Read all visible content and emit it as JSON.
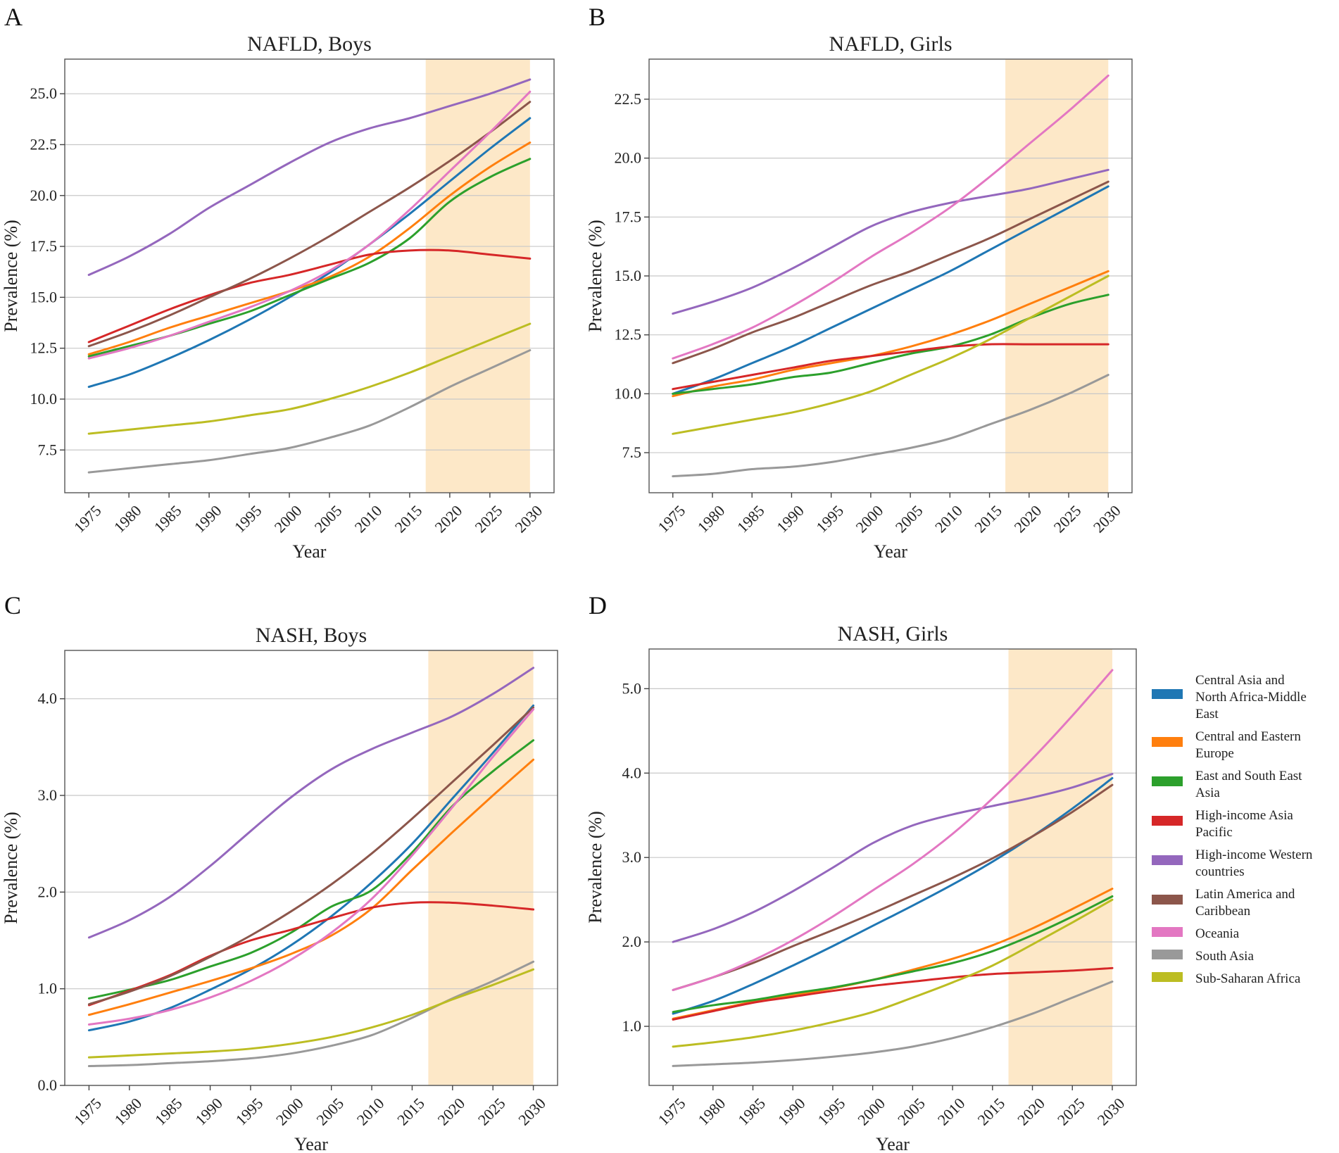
{
  "figure": {
    "legend": [
      {
        "id": "CANAME",
        "label": "Central Asia and North Africa-Middle East",
        "lines": [
          "Central Asia and",
          "North Africa-Middle",
          "East"
        ],
        "color": "#1f77b4"
      },
      {
        "id": "CEE",
        "label": "Central and Eastern Europe",
        "lines": [
          "Central and Eastern",
          "Europe"
        ],
        "color": "#ff7f0e"
      },
      {
        "id": "ESEA",
        "label": "East and South East Asia",
        "lines": [
          "East and South East",
          "Asia"
        ],
        "color": "#2ca02c"
      },
      {
        "id": "HIAP",
        "label": "High-income Asia Pacific",
        "lines": [
          "High-income Asia",
          "Pacific"
        ],
        "color": "#d62728"
      },
      {
        "id": "HIW",
        "label": "High-income Western countries",
        "lines": [
          "High-income Western",
          "countries"
        ],
        "color": "#9467bd"
      },
      {
        "id": "LAC",
        "label": "Latin America and Caribbean",
        "lines": [
          "Latin America and",
          "Caribbean"
        ],
        "color": "#8c564b"
      },
      {
        "id": "OC",
        "label": "Oceania",
        "lines": [
          "Oceania"
        ],
        "color": "#e377c2"
      },
      {
        "id": "SA",
        "label": "South Asia",
        "lines": [
          "South Asia"
        ],
        "color": "#999999"
      },
      {
        "id": "SSA",
        "label": "Sub-Saharan Africa",
        "lines": [
          "Sub-Saharan Africa"
        ],
        "color": "#bcbd22"
      }
    ],
    "projection_color": "#fde8c8"
  },
  "chart_data": [
    {
      "panel": "A",
      "type": "line",
      "title": "NAFLD, Boys",
      "xlabel": "Year",
      "ylabel": "Prevalence (%)",
      "xlim": [
        1972,
        2033
      ],
      "ylim": [
        5.4,
        26.7
      ],
      "xticks": [
        1975,
        1980,
        1985,
        1990,
        1995,
        2000,
        2005,
        2010,
        2015,
        2020,
        2025,
        2030
      ],
      "yticks": [
        7.5,
        10.0,
        12.5,
        15.0,
        17.5,
        20.0,
        22.5,
        25.0
      ],
      "ytick_labels": [
        "7.5",
        "10.0",
        "12.5",
        "15.0",
        "17.5",
        "20.0",
        "22.5",
        "25.0"
      ],
      "projection": [
        2017,
        2030
      ],
      "x": [
        1975,
        1980,
        1985,
        1990,
        1995,
        2000,
        2005,
        2010,
        2015,
        2020,
        2025,
        2030
      ],
      "series": [
        {
          "name": "Central Asia and North Africa-Middle East",
          "values": [
            10.6,
            11.2,
            12.0,
            12.9,
            13.9,
            15.0,
            16.2,
            17.6,
            19.1,
            20.7,
            22.3,
            23.8
          ]
        },
        {
          "name": "Central and Eastern Europe",
          "values": [
            12.2,
            12.8,
            13.5,
            14.1,
            14.7,
            15.3,
            16.0,
            17.0,
            18.4,
            20.0,
            21.4,
            22.6
          ]
        },
        {
          "name": "East and South East Asia",
          "values": [
            12.1,
            12.6,
            13.1,
            13.7,
            14.3,
            15.1,
            15.9,
            16.7,
            17.9,
            19.7,
            20.9,
            21.8
          ]
        },
        {
          "name": "High-income Asia Pacific",
          "values": [
            12.8,
            13.6,
            14.4,
            15.1,
            15.7,
            16.1,
            16.6,
            17.1,
            17.3,
            17.3,
            17.1,
            16.9
          ]
        },
        {
          "name": "High-income Western countries",
          "values": [
            16.1,
            17.0,
            18.1,
            19.4,
            20.5,
            21.6,
            22.6,
            23.3,
            23.8,
            24.4,
            25.0,
            25.7
          ]
        },
        {
          "name": "Latin America and Caribbean",
          "values": [
            12.6,
            13.3,
            14.1,
            15.0,
            15.9,
            16.9,
            18.0,
            19.2,
            20.4,
            21.7,
            23.1,
            24.6
          ]
        },
        {
          "name": "Oceania",
          "values": [
            12.0,
            12.5,
            13.1,
            13.8,
            14.5,
            15.3,
            16.3,
            17.6,
            19.3,
            21.2,
            23.1,
            25.1
          ]
        },
        {
          "name": "South Asia",
          "values": [
            6.4,
            6.6,
            6.8,
            7.0,
            7.3,
            7.6,
            8.1,
            8.7,
            9.6,
            10.6,
            11.5,
            12.4
          ]
        },
        {
          "name": "Sub-Saharan Africa",
          "values": [
            8.3,
            8.5,
            8.7,
            8.9,
            9.2,
            9.5,
            10.0,
            10.6,
            11.3,
            12.1,
            12.9,
            13.7
          ]
        }
      ]
    },
    {
      "panel": "B",
      "type": "line",
      "title": "NAFLD, Girls",
      "xlabel": "Year",
      "ylabel": "Prevalence (%)",
      "xlim": [
        1972,
        2033
      ],
      "ylim": [
        5.8,
        24.2
      ],
      "xticks": [
        1975,
        1980,
        1985,
        1990,
        1995,
        2000,
        2005,
        2010,
        2015,
        2020,
        2025,
        2030
      ],
      "yticks": [
        7.5,
        10.0,
        12.5,
        15.0,
        17.5,
        20.0,
        22.5
      ],
      "ytick_labels": [
        "7.5",
        "10.0",
        "12.5",
        "15.0",
        "17.5",
        "20.0",
        "22.5"
      ],
      "projection": [
        2017,
        2030
      ],
      "x": [
        1975,
        1980,
        1985,
        1990,
        1995,
        2000,
        2005,
        2010,
        2015,
        2020,
        2025,
        2030
      ],
      "series": [
        {
          "name": "Central Asia and North Africa-Middle East",
          "values": [
            10.0,
            10.6,
            11.3,
            12.0,
            12.8,
            13.6,
            14.4,
            15.2,
            16.1,
            17.0,
            17.9,
            18.8
          ]
        },
        {
          "name": "Central and Eastern Europe",
          "values": [
            9.9,
            10.3,
            10.6,
            11.0,
            11.3,
            11.6,
            12.0,
            12.5,
            13.1,
            13.8,
            14.5,
            15.2
          ]
        },
        {
          "name": "East and South East Asia",
          "values": [
            10.0,
            10.2,
            10.4,
            10.7,
            10.9,
            11.3,
            11.7,
            12.0,
            12.5,
            13.2,
            13.8,
            14.2
          ]
        },
        {
          "name": "High-income Asia Pacific",
          "values": [
            10.2,
            10.5,
            10.8,
            11.1,
            11.4,
            11.6,
            11.8,
            12.0,
            12.1,
            12.1,
            12.1,
            12.1
          ]
        },
        {
          "name": "High-income Western countries",
          "values": [
            13.4,
            13.9,
            14.5,
            15.3,
            16.2,
            17.1,
            17.7,
            18.1,
            18.4,
            18.7,
            19.1,
            19.5
          ]
        },
        {
          "name": "Latin America and Caribbean",
          "values": [
            11.3,
            11.9,
            12.6,
            13.2,
            13.9,
            14.6,
            15.2,
            15.9,
            16.6,
            17.4,
            18.2,
            19.0
          ]
        },
        {
          "name": "Oceania",
          "values": [
            11.5,
            12.1,
            12.8,
            13.7,
            14.7,
            15.8,
            16.8,
            17.9,
            19.2,
            20.6,
            22.0,
            23.5
          ]
        },
        {
          "name": "South Asia",
          "values": [
            6.5,
            6.6,
            6.8,
            6.9,
            7.1,
            7.4,
            7.7,
            8.1,
            8.7,
            9.3,
            10.0,
            10.8
          ]
        },
        {
          "name": "Sub-Saharan Africa",
          "values": [
            8.3,
            8.6,
            8.9,
            9.2,
            9.6,
            10.1,
            10.8,
            11.5,
            12.3,
            13.2,
            14.1,
            15.0
          ]
        }
      ]
    },
    {
      "panel": "C",
      "type": "line",
      "title": "NASH, Boys",
      "xlabel": "Year",
      "ylabel": "Prevalence (%)",
      "xlim": [
        1972,
        2033
      ],
      "ylim": [
        0.0,
        4.5
      ],
      "xticks": [
        1975,
        1980,
        1985,
        1990,
        1995,
        2000,
        2005,
        2010,
        2015,
        2020,
        2025,
        2030
      ],
      "yticks": [
        0.0,
        1.0,
        2.0,
        3.0,
        4.0
      ],
      "ytick_labels": [
        "0.0",
        "1.0",
        "2.0",
        "3.0",
        "4.0"
      ],
      "projection": [
        2017,
        2030
      ],
      "x": [
        1975,
        1980,
        1985,
        1990,
        1995,
        2000,
        2005,
        2010,
        2015,
        2020,
        2025,
        2030
      ],
      "series": [
        {
          "name": "Central Asia and North Africa-Middle East",
          "values": [
            0.57,
            0.66,
            0.8,
            0.99,
            1.2,
            1.45,
            1.75,
            2.1,
            2.5,
            2.97,
            3.44,
            3.93
          ]
        },
        {
          "name": "Central and Eastern Europe",
          "values": [
            0.73,
            0.84,
            0.96,
            1.08,
            1.21,
            1.36,
            1.55,
            1.83,
            2.23,
            2.62,
            3.0,
            3.37
          ]
        },
        {
          "name": "East and South East Asia",
          "values": [
            0.9,
            0.99,
            1.09,
            1.23,
            1.37,
            1.58,
            1.85,
            2.02,
            2.41,
            2.89,
            3.25,
            3.57
          ]
        },
        {
          "name": "High-income Asia Pacific",
          "values": [
            0.83,
            0.98,
            1.14,
            1.34,
            1.5,
            1.61,
            1.73,
            1.84,
            1.89,
            1.89,
            1.86,
            1.82
          ]
        },
        {
          "name": "High-income Western countries",
          "values": [
            1.53,
            1.71,
            1.95,
            2.27,
            2.63,
            2.98,
            3.27,
            3.48,
            3.65,
            3.82,
            4.05,
            4.32
          ]
        },
        {
          "name": "Latin America and Caribbean",
          "values": [
            0.84,
            0.97,
            1.13,
            1.33,
            1.55,
            1.8,
            2.08,
            2.4,
            2.76,
            3.14,
            3.52,
            3.91
          ]
        },
        {
          "name": "Oceania",
          "values": [
            0.63,
            0.69,
            0.78,
            0.91,
            1.08,
            1.3,
            1.58,
            1.93,
            2.38,
            2.88,
            3.4,
            3.89
          ]
        },
        {
          "name": "South Asia",
          "values": [
            0.2,
            0.21,
            0.23,
            0.25,
            0.28,
            0.33,
            0.41,
            0.52,
            0.7,
            0.9,
            1.08,
            1.28
          ]
        },
        {
          "name": "Sub-Saharan Africa",
          "values": [
            0.29,
            0.31,
            0.33,
            0.35,
            0.38,
            0.43,
            0.5,
            0.6,
            0.73,
            0.89,
            1.04,
            1.2
          ]
        }
      ]
    },
    {
      "panel": "D",
      "type": "line",
      "title": "NASH, Girls",
      "xlabel": "Year",
      "ylabel": "Prevalence (%)",
      "xlim": [
        1972,
        2033
      ],
      "ylim": [
        0.3,
        5.47
      ],
      "xticks": [
        1975,
        1980,
        1985,
        1990,
        1995,
        2000,
        2005,
        2010,
        2015,
        2020,
        2025,
        2030
      ],
      "yticks": [
        1.0,
        2.0,
        3.0,
        4.0,
        5.0
      ],
      "ytick_labels": [
        "1.0",
        "2.0",
        "3.0",
        "4.0",
        "5.0"
      ],
      "projection": [
        2017,
        2030
      ],
      "x": [
        1975,
        1980,
        1985,
        1990,
        1995,
        2000,
        2005,
        2010,
        2015,
        2020,
        2025,
        2030
      ],
      "series": [
        {
          "name": "Central Asia and North Africa-Middle East",
          "values": [
            1.15,
            1.3,
            1.5,
            1.72,
            1.95,
            2.19,
            2.43,
            2.68,
            2.95,
            3.25,
            3.58,
            3.94
          ]
        },
        {
          "name": "Central and Eastern Europe",
          "values": [
            1.09,
            1.19,
            1.29,
            1.37,
            1.45,
            1.55,
            1.67,
            1.8,
            1.96,
            2.16,
            2.39,
            2.63
          ]
        },
        {
          "name": "East and South East Asia",
          "values": [
            1.17,
            1.25,
            1.31,
            1.39,
            1.46,
            1.55,
            1.65,
            1.75,
            1.89,
            2.08,
            2.3,
            2.54
          ]
        },
        {
          "name": "High-income Asia Pacific",
          "values": [
            1.08,
            1.18,
            1.28,
            1.35,
            1.42,
            1.48,
            1.53,
            1.58,
            1.62,
            1.64,
            1.66,
            1.69
          ]
        },
        {
          "name": "High-income Western countries",
          "values": [
            2.0,
            2.15,
            2.35,
            2.6,
            2.88,
            3.17,
            3.38,
            3.51,
            3.61,
            3.71,
            3.83,
            3.99
          ]
        },
        {
          "name": "Latin America and Caribbean",
          "values": [
            1.43,
            1.58,
            1.75,
            1.95,
            2.14,
            2.34,
            2.55,
            2.76,
            2.99,
            3.25,
            3.54,
            3.86
          ]
        },
        {
          "name": "Oceania",
          "values": [
            1.43,
            1.58,
            1.78,
            2.02,
            2.3,
            2.61,
            2.92,
            3.28,
            3.7,
            4.17,
            4.68,
            5.22
          ]
        },
        {
          "name": "South Asia",
          "values": [
            0.53,
            0.55,
            0.57,
            0.6,
            0.64,
            0.69,
            0.76,
            0.86,
            0.99,
            1.15,
            1.34,
            1.53
          ]
        },
        {
          "name": "Sub-Saharan Africa",
          "values": [
            0.76,
            0.81,
            0.87,
            0.95,
            1.05,
            1.17,
            1.34,
            1.52,
            1.72,
            1.97,
            2.23,
            2.5
          ]
        }
      ]
    }
  ]
}
